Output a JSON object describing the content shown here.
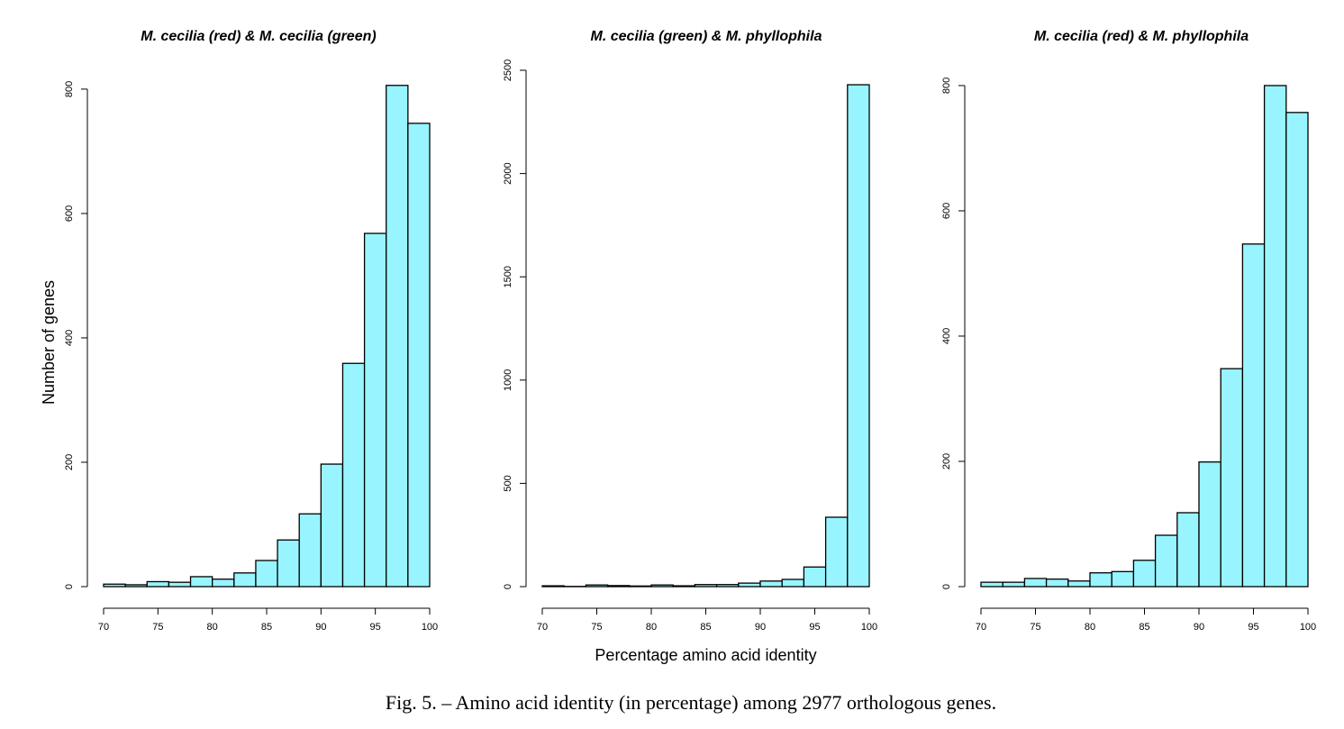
{
  "chart_data": [
    {
      "type": "histogram",
      "title": "M. cecilia (red) & M. cecilia (green)",
      "ylabel": "Number of genes",
      "bins": [
        70,
        72,
        74,
        76,
        78,
        80,
        82,
        84,
        86,
        88,
        90,
        92,
        94,
        96,
        98,
        100
      ],
      "counts": [
        4,
        3,
        8,
        7,
        16,
        12,
        22,
        42,
        75,
        117,
        197,
        359,
        568,
        806,
        745
      ],
      "color": "#98f5ff",
      "xlim": [
        70,
        100
      ],
      "xticks": [
        70,
        75,
        80,
        85,
        90,
        95,
        100
      ],
      "ylim": [
        0,
        810
      ],
      "yticks": [
        0,
        200,
        400,
        600,
        800
      ]
    },
    {
      "type": "histogram",
      "title": "M. cecilia (green) & M. phyllophila",
      "xlabel": "Percentage amino acid identity",
      "bins": [
        70,
        72,
        74,
        76,
        78,
        80,
        82,
        84,
        86,
        88,
        90,
        92,
        94,
        96,
        98,
        100
      ],
      "counts": [
        4,
        1,
        8,
        5,
        3,
        8,
        4,
        10,
        10,
        17,
        27,
        35,
        95,
        336,
        2430
      ],
      "color": "#98f5ff",
      "xlim": [
        70,
        100
      ],
      "xticks": [
        70,
        75,
        80,
        85,
        90,
        95,
        100
      ],
      "ylim": [
        0,
        2500
      ],
      "yticks": [
        0,
        500,
        1000,
        1500,
        2000,
        2500
      ]
    },
    {
      "type": "histogram",
      "title": "M. cecilia (red) & M. phyllophila",
      "bins": [
        70,
        72,
        74,
        76,
        78,
        80,
        82,
        84,
        86,
        88,
        90,
        92,
        94,
        96,
        98,
        100
      ],
      "counts": [
        7,
        7,
        13,
        12,
        9,
        22,
        24,
        42,
        82,
        118,
        199,
        348,
        547,
        800,
        757
      ],
      "color": "#98f5ff",
      "xlim": [
        70,
        100
      ],
      "xticks": [
        70,
        75,
        80,
        85,
        90,
        95,
        100
      ],
      "ylim": [
        0,
        810
      ],
      "yticks": [
        0,
        200,
        400,
        600,
        800
      ]
    }
  ],
  "caption": "Fig. 5. – Amino acid identity (in percentage) among 2977 orthologous genes."
}
